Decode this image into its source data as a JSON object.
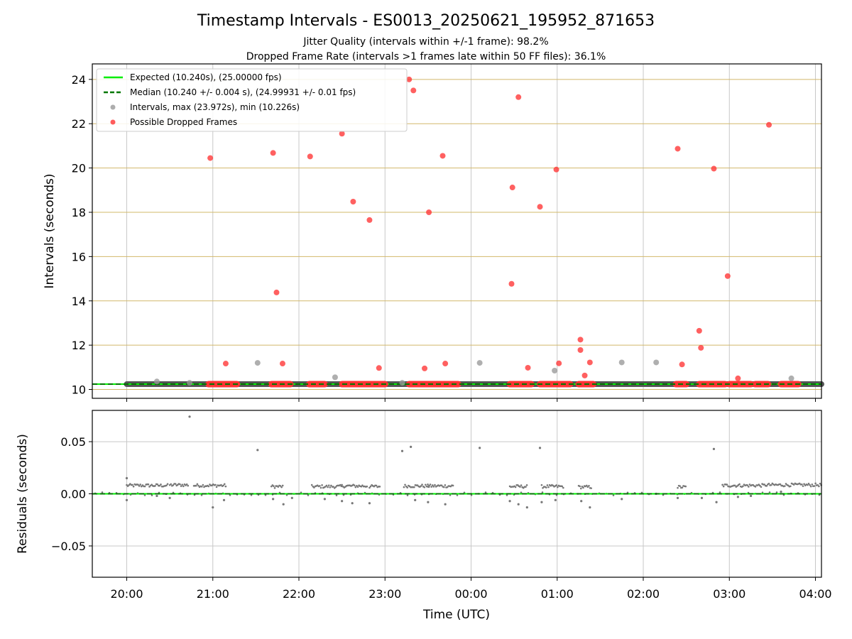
{
  "title": "Timestamp Intervals - ES0013_20250621_195952_871653",
  "subtitle_1": "Jitter Quality (intervals within +/-1 frame): 98.2%",
  "subtitle_2": "Dropped Frame Rate (intervals >1 frames late within 50 FF files): 36.1%",
  "colors": {
    "expected": "#00ee00",
    "median": "#007700",
    "intervals": "#999999",
    "dropped": "#ff3333",
    "hgrid_top": "#d2b86a",
    "grid": "#c8c8c8",
    "residual_points": "#777777"
  },
  "legend": {
    "placement": "top-left",
    "items": [
      {
        "label": "Expected (10.240s), (25.00000 fps)",
        "kind": "solid-line",
        "color": "#00ee00"
      },
      {
        "label": "Median (10.240 +/- 0.004 s), (24.99931 +/- 0.01 fps)",
        "kind": "dashed-line",
        "color": "#007700"
      },
      {
        "label": "Intervals, max (23.972s), min (10.226s)",
        "kind": "marker",
        "color": "#999999"
      },
      {
        "label": "Possible Dropped Frames",
        "kind": "marker",
        "color": "#ff3333"
      }
    ]
  },
  "x_axis": {
    "label": "Time (UTC)",
    "unit": "hours since 20:00",
    "range": [
      -0.4,
      8.07
    ],
    "ticks": [
      {
        "v": 0,
        "label": "20:00"
      },
      {
        "v": 1,
        "label": "21:00"
      },
      {
        "v": 2,
        "label": "22:00"
      },
      {
        "v": 3,
        "label": "23:00"
      },
      {
        "v": 4,
        "label": "00:00"
      },
      {
        "v": 5,
        "label": "01:00"
      },
      {
        "v": 6,
        "label": "02:00"
      },
      {
        "v": 7,
        "label": "03:00"
      },
      {
        "v": 8,
        "label": "04:00"
      }
    ]
  },
  "chart_data": [
    {
      "type": "scatter",
      "ylabel": "Intervals (seconds)",
      "ylim": [
        9.6,
        24.7
      ],
      "yticks": [
        {
          "v": 10,
          "label": "10"
        },
        {
          "v": 12,
          "label": "12"
        },
        {
          "v": 14,
          "label": "14"
        },
        {
          "v": 16,
          "label": "16"
        },
        {
          "v": 18,
          "label": "18"
        },
        {
          "v": 20,
          "label": "20"
        },
        {
          "v": 22,
          "label": "22"
        },
        {
          "v": 24,
          "label": "24"
        }
      ],
      "expected_y": 10.24,
      "median_y": 10.24,
      "baseline_band": [
        0.0,
        8.07
      ],
      "dropped_clusters": [
        [
          0.95,
          1.28
        ],
        [
          1.68,
          1.9
        ],
        [
          2.12,
          2.3
        ],
        [
          2.5,
          2.82
        ],
        [
          2.82,
          3.0
        ],
        [
          3.28,
          3.5
        ],
        [
          3.5,
          3.85
        ],
        [
          4.45,
          4.7
        ],
        [
          4.8,
          5.15
        ],
        [
          5.25,
          5.42
        ],
        [
          6.38,
          6.5
        ],
        [
          6.65,
          6.95
        ],
        [
          7.0,
          7.25
        ],
        [
          7.3,
          7.45
        ],
        [
          7.6,
          7.8
        ]
      ],
      "series": [
        {
          "name": "Possible Dropped Frames",
          "color": "#ff3333",
          "points": [
            [
              0.97,
              20.45
            ],
            [
              1.15,
              11.17
            ],
            [
              1.7,
              20.68
            ],
            [
              1.74,
              14.38
            ],
            [
              1.81,
              11.17
            ],
            [
              2.13,
              20.52
            ],
            [
              2.5,
              21.55
            ],
            [
              2.63,
              18.48
            ],
            [
              2.82,
              17.65
            ],
            [
              2.93,
              10.97
            ],
            [
              3.28,
              24.0
            ],
            [
              3.33,
              23.5
            ],
            [
              3.46,
              10.95
            ],
            [
              3.51,
              18.0
            ],
            [
              3.67,
              20.55
            ],
            [
              3.7,
              11.17
            ],
            [
              4.47,
              14.77
            ],
            [
              4.48,
              19.12
            ],
            [
              4.55,
              23.2
            ],
            [
              4.66,
              10.98
            ],
            [
              4.8,
              18.25
            ],
            [
              4.99,
              19.93
            ],
            [
              5.02,
              11.18
            ],
            [
              5.27,
              12.25
            ],
            [
              5.27,
              11.78
            ],
            [
              5.32,
              10.63
            ],
            [
              5.38,
              11.22
            ],
            [
              6.4,
              20.87
            ],
            [
              6.45,
              11.13
            ],
            [
              6.65,
              12.65
            ],
            [
              6.67,
              11.88
            ],
            [
              6.82,
              19.97
            ],
            [
              6.98,
              15.12
            ],
            [
              7.1,
              10.5
            ],
            [
              7.46,
              21.95
            ]
          ]
        },
        {
          "name": "Intervals",
          "color": "#999999",
          "points": [
            [
              0.35,
              10.36
            ],
            [
              0.73,
              10.3
            ],
            [
              1.52,
              11.2
            ],
            [
              2.42,
              10.55
            ],
            [
              4.1,
              11.2
            ],
            [
              4.97,
              10.85
            ],
            [
              5.75,
              11.22
            ],
            [
              6.15,
              11.22
            ],
            [
              7.72,
              10.5
            ],
            [
              3.2,
              10.3
            ]
          ]
        }
      ]
    },
    {
      "type": "scatter",
      "ylabel": "Residuals (seconds)",
      "ylim": [
        -0.08,
        0.08
      ],
      "yticks": [
        {
          "v": 0.05,
          "label": "0.05"
        },
        {
          "v": 0.0,
          "label": "0.00"
        },
        {
          "v": -0.05,
          "label": "−0.05"
        }
      ],
      "zero_line": 0.0,
      "residual_bands": [
        [
          0.0,
          0.48,
          0.008
        ],
        [
          0.5,
          0.72,
          0.0085
        ],
        [
          0.78,
          1.15,
          0.008
        ],
        [
          1.68,
          1.82,
          0.007
        ],
        [
          2.15,
          2.5,
          0.007
        ],
        [
          2.5,
          2.8,
          0.0075
        ],
        [
          2.82,
          2.95,
          0.007
        ],
        [
          3.22,
          3.52,
          0.0075
        ],
        [
          3.5,
          3.8,
          0.0075
        ],
        [
          4.45,
          4.65,
          0.007
        ],
        [
          4.82,
          5.08,
          0.007
        ],
        [
          5.25,
          5.4,
          0.0065
        ],
        [
          6.4,
          6.5,
          0.0065
        ],
        [
          6.92,
          7.42,
          0.008
        ],
        [
          7.42,
          8.07,
          0.0085
        ]
      ],
      "outliers": [
        [
          0.0,
          0.015
        ],
        [
          0.0,
          -0.006
        ],
        [
          0.35,
          -0.002
        ],
        [
          0.5,
          -0.004
        ],
        [
          0.73,
          0.074
        ],
        [
          1.0,
          -0.013
        ],
        [
          1.13,
          -0.006
        ],
        [
          1.52,
          0.042
        ],
        [
          1.7,
          -0.005
        ],
        [
          1.82,
          -0.01
        ],
        [
          1.92,
          -0.004
        ],
        [
          2.3,
          -0.005
        ],
        [
          2.5,
          -0.007
        ],
        [
          2.62,
          -0.009
        ],
        [
          2.82,
          -0.009
        ],
        [
          3.2,
          0.041
        ],
        [
          3.3,
          0.045
        ],
        [
          3.35,
          -0.006
        ],
        [
          3.5,
          -0.008
        ],
        [
          3.7,
          -0.01
        ],
        [
          4.1,
          0.044
        ],
        [
          4.45,
          -0.007
        ],
        [
          4.55,
          -0.01
        ],
        [
          4.65,
          -0.013
        ],
        [
          4.8,
          0.044
        ],
        [
          4.82,
          -0.008
        ],
        [
          4.98,
          -0.006
        ],
        [
          5.28,
          -0.007
        ],
        [
          5.38,
          -0.013
        ],
        [
          5.75,
          -0.005
        ],
        [
          6.15,
          0.0
        ],
        [
          6.4,
          -0.004
        ],
        [
          6.68,
          -0.004
        ],
        [
          6.82,
          0.043
        ],
        [
          6.85,
          -0.008
        ],
        [
          7.1,
          -0.003
        ],
        [
          7.25,
          -0.002
        ],
        [
          7.6,
          0.002
        ]
      ]
    }
  ]
}
